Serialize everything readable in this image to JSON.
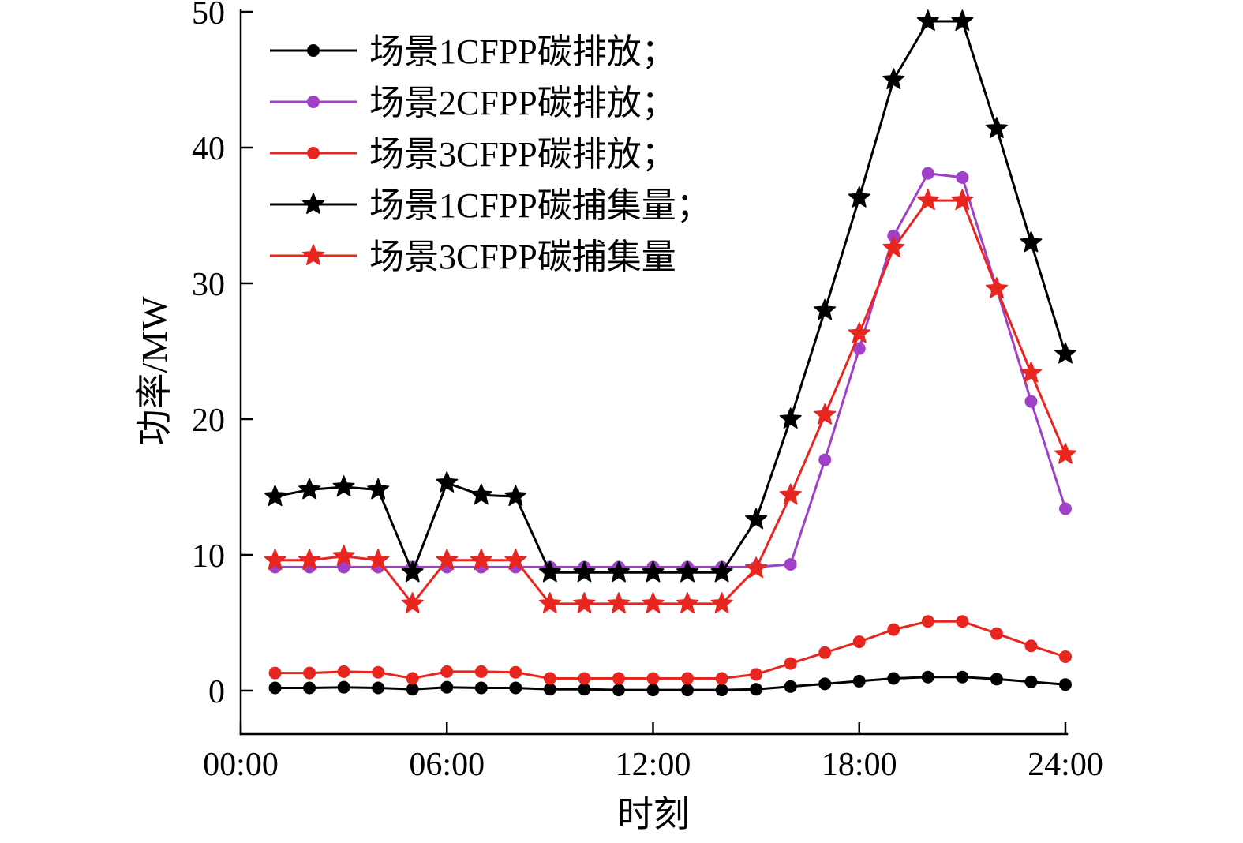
{
  "chart_data": {
    "type": "line",
    "title": "",
    "xlabel": "时刻",
    "ylabel": "功率/MW",
    "grid": false,
    "legend_position": "top-left",
    "xlim": [
      0,
      24
    ],
    "ylim": [
      -3.2,
      50
    ],
    "x_hours": [
      1,
      2,
      3,
      4,
      5,
      6,
      7,
      8,
      9,
      10,
      11,
      12,
      13,
      14,
      15,
      16,
      17,
      18,
      19,
      20,
      21,
      22,
      23,
      24
    ],
    "x_ticks": [
      {
        "value": 0,
        "label": "00:00"
      },
      {
        "value": 6,
        "label": "06:00"
      },
      {
        "value": 12,
        "label": "12:00"
      },
      {
        "value": 18,
        "label": "18:00"
      },
      {
        "value": 24,
        "label": "24:00"
      }
    ],
    "y_ticks": [
      0,
      10,
      20,
      30,
      40,
      50
    ],
    "series": [
      {
        "name": "场景1CFPP碳排放；",
        "color": "#000000",
        "marker": "circle",
        "values": [
          0.2,
          0.2,
          0.25,
          0.2,
          0.1,
          0.25,
          0.2,
          0.2,
          0.1,
          0.1,
          0.05,
          0.05,
          0.05,
          0.05,
          0.1,
          0.3,
          0.5,
          0.7,
          0.9,
          1.0,
          1.0,
          0.85,
          0.65,
          0.45
        ]
      },
      {
        "name": "场景2CFPP碳排放；",
        "color": "#A040C8",
        "marker": "circle",
        "values": [
          9.1,
          9.1,
          9.1,
          9.1,
          9.1,
          9.1,
          9.1,
          9.1,
          9.1,
          9.1,
          9.1,
          9.1,
          9.1,
          9.1,
          9.1,
          9.3,
          17.0,
          25.2,
          33.5,
          38.1,
          37.8,
          29.6,
          21.3,
          13.4
        ]
      },
      {
        "name": "场景3CFPP碳排放；",
        "color": "#E8261F",
        "marker": "circle",
        "values": [
          1.3,
          1.3,
          1.4,
          1.35,
          0.9,
          1.4,
          1.4,
          1.35,
          0.9,
          0.9,
          0.9,
          0.9,
          0.9,
          0.9,
          1.2,
          2.0,
          2.8,
          3.6,
          4.5,
          5.1,
          5.1,
          4.2,
          3.3,
          2.5
        ]
      },
      {
        "name": "场景1CFPP碳捕集量；",
        "color": "#000000",
        "marker": "star",
        "values": [
          14.3,
          14.8,
          15.0,
          14.8,
          8.7,
          15.3,
          14.4,
          14.3,
          8.7,
          8.7,
          8.7,
          8.7,
          8.7,
          8.7,
          12.6,
          20.0,
          28.0,
          36.3,
          45.0,
          49.3,
          49.3,
          41.4,
          33.0,
          24.8
        ]
      },
      {
        "name": "场景3CFPP碳捕集量",
        "color": "#E8261F",
        "marker": "star",
        "values": [
          9.6,
          9.6,
          9.9,
          9.6,
          6.4,
          9.6,
          9.6,
          9.6,
          6.4,
          6.4,
          6.4,
          6.4,
          6.4,
          6.4,
          9.0,
          14.4,
          20.3,
          26.3,
          32.6,
          36.1,
          36.1,
          29.6,
          23.4,
          17.4
        ]
      }
    ]
  }
}
